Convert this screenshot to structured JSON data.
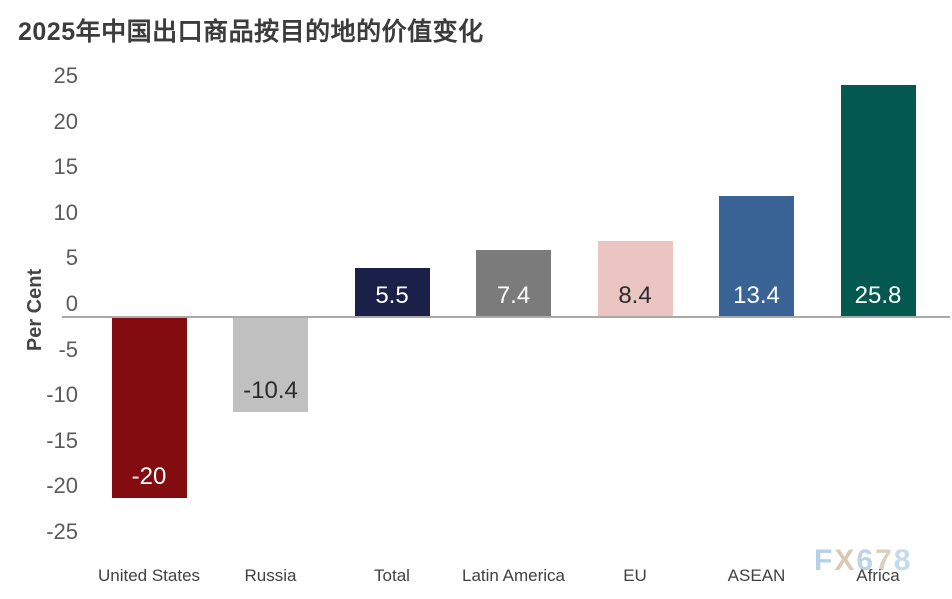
{
  "title": "2025年中国出口商品按目的地的价值变化",
  "watermark": {
    "text": "FX678",
    "letter_colors": [
      "#afcbe6",
      "#d6c5ae",
      "#b6cfe2",
      "#d9c9b3",
      "#bdd7ee"
    ]
  },
  "chart_data": {
    "type": "bar",
    "title": "2025年中国出口商品按目的地的价值变化",
    "categories": [
      "United States",
      "Russia",
      "Total",
      "Latin America",
      "EU",
      "ASEAN",
      "Africa"
    ],
    "values": [
      -20,
      -10.4,
      5.5,
      7.4,
      8.4,
      13.4,
      25.8
    ],
    "value_labels": [
      "-20",
      "-10.4",
      "5.5",
      "7.4",
      "8.4",
      "13.4",
      "25.8"
    ],
    "bar_colors": [
      "#820c10",
      "#c0c0c0",
      "#1b2049",
      "#7b7b7b",
      "#ebc5c1",
      "#3a6395",
      "#03584f"
    ],
    "value_label_colors": [
      "#ffffff",
      "#2b2b2b",
      "#ffffff",
      "#ffffff",
      "#2b2b2b",
      "#ffffff",
      "#ffffff"
    ],
    "xlabel": "",
    "ylabel": "Per Cent",
    "yticks": [
      25,
      20,
      15,
      10,
      5,
      0,
      -5,
      -10,
      -15,
      -20,
      -25
    ],
    "ylim": [
      -25,
      25
    ],
    "grid": false,
    "legend": false,
    "axis_line_color": "#a9a9a9"
  }
}
